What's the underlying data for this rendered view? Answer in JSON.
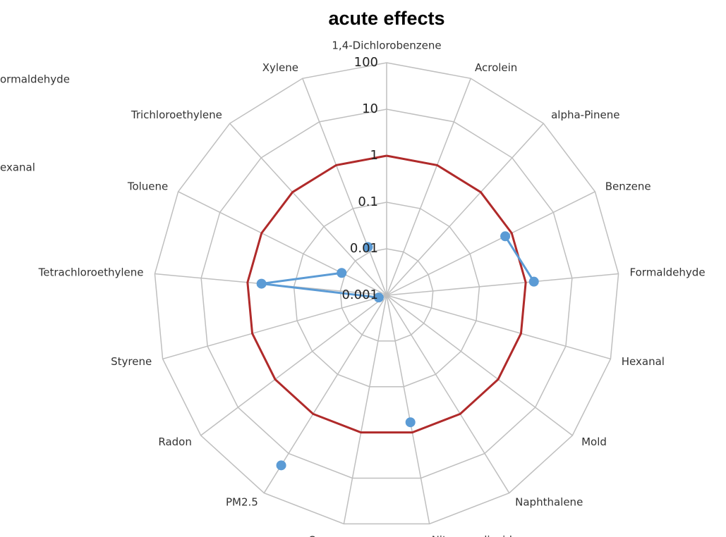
{
  "chart_data": {
    "type": "radar",
    "title": "acute effects",
    "categories": [
      "1,4-Dichlorobenzene",
      "Acrolein",
      "alpha-Pinene",
      "Benzene",
      "Formaldehyde",
      "Hexanal",
      "Mold",
      "Naphthalene",
      "Nitrogen dioxide",
      "Ozone",
      "PM2.5",
      "Radon",
      "Styrene",
      "Tetrachloroethylene",
      "Toluene",
      "Trichloroethylene",
      "Xylene"
    ],
    "series": [
      {
        "color": "#b02a2a",
        "values": [
          1,
          1,
          1,
          1,
          1,
          1,
          1,
          1,
          1,
          1,
          1,
          1,
          1,
          1,
          1,
          1,
          1
        ],
        "markers": false
      },
      {
        "color": "#5b9bd5",
        "values": [
          null,
          null,
          null,
          0.7,
          1.5,
          null,
          null,
          null,
          0.6,
          null,
          20,
          null,
          0.0015,
          0.5,
          0.012,
          null,
          0.013
        ],
        "markers": true
      }
    ],
    "log_scale": true,
    "ylim": [
      0.001,
      100
    ],
    "yticks": [
      0.001,
      0.01,
      0.1,
      1,
      10,
      100
    ],
    "grid": true,
    "cropped_legend": [
      "ormaldehyde",
      "exanal"
    ]
  }
}
